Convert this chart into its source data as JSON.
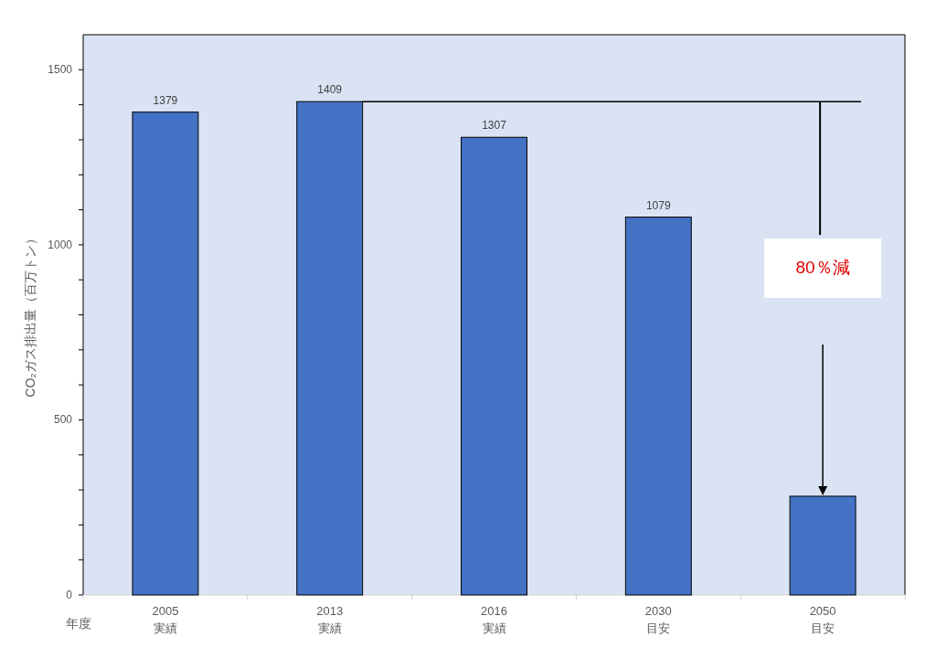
{
  "chart_data": {
    "type": "bar",
    "categories": [
      "2005\n実績",
      "2013\n実績",
      "2016\n実績",
      "2030\n目安",
      "2050\n目安"
    ],
    "values": [
      1379,
      1409,
      1307,
      1079,
      282
    ],
    "value_labels": [
      "1379",
      "1409",
      "1307",
      "1079",
      null
    ],
    "color": "#4472c4",
    "xlabel": "年度",
    "ylabel": "CO₂ガス排出量（百万トン）",
    "ylim": [
      0,
      1600
    ],
    "yticks": [
      0,
      {
        "value": 100,
        "label": null
      },
      {
        "value": 200,
        "label": null
      },
      {
        "value": 300,
        "label": null
      },
      {
        "value": 400,
        "label": null
      },
      500,
      {
        "value": 600,
        "label": null
      },
      {
        "value": 700,
        "label": null
      },
      {
        "value": 800,
        "label": null
      },
      {
        "value": 900,
        "label": null
      },
      1000,
      {
        "value": 1100,
        "label": null
      },
      {
        "value": 1200,
        "label": null
      },
      {
        "value": 1300,
        "label": null
      },
      {
        "value": 1400,
        "label": null
      },
      1500
    ],
    "ref_lines": [
      {
        "axis": "y",
        "value": 1409,
        "color": "#000000",
        "line_style": "solid"
      }
    ],
    "annotations": [
      "80％減"
    ],
    "grid": false
  }
}
